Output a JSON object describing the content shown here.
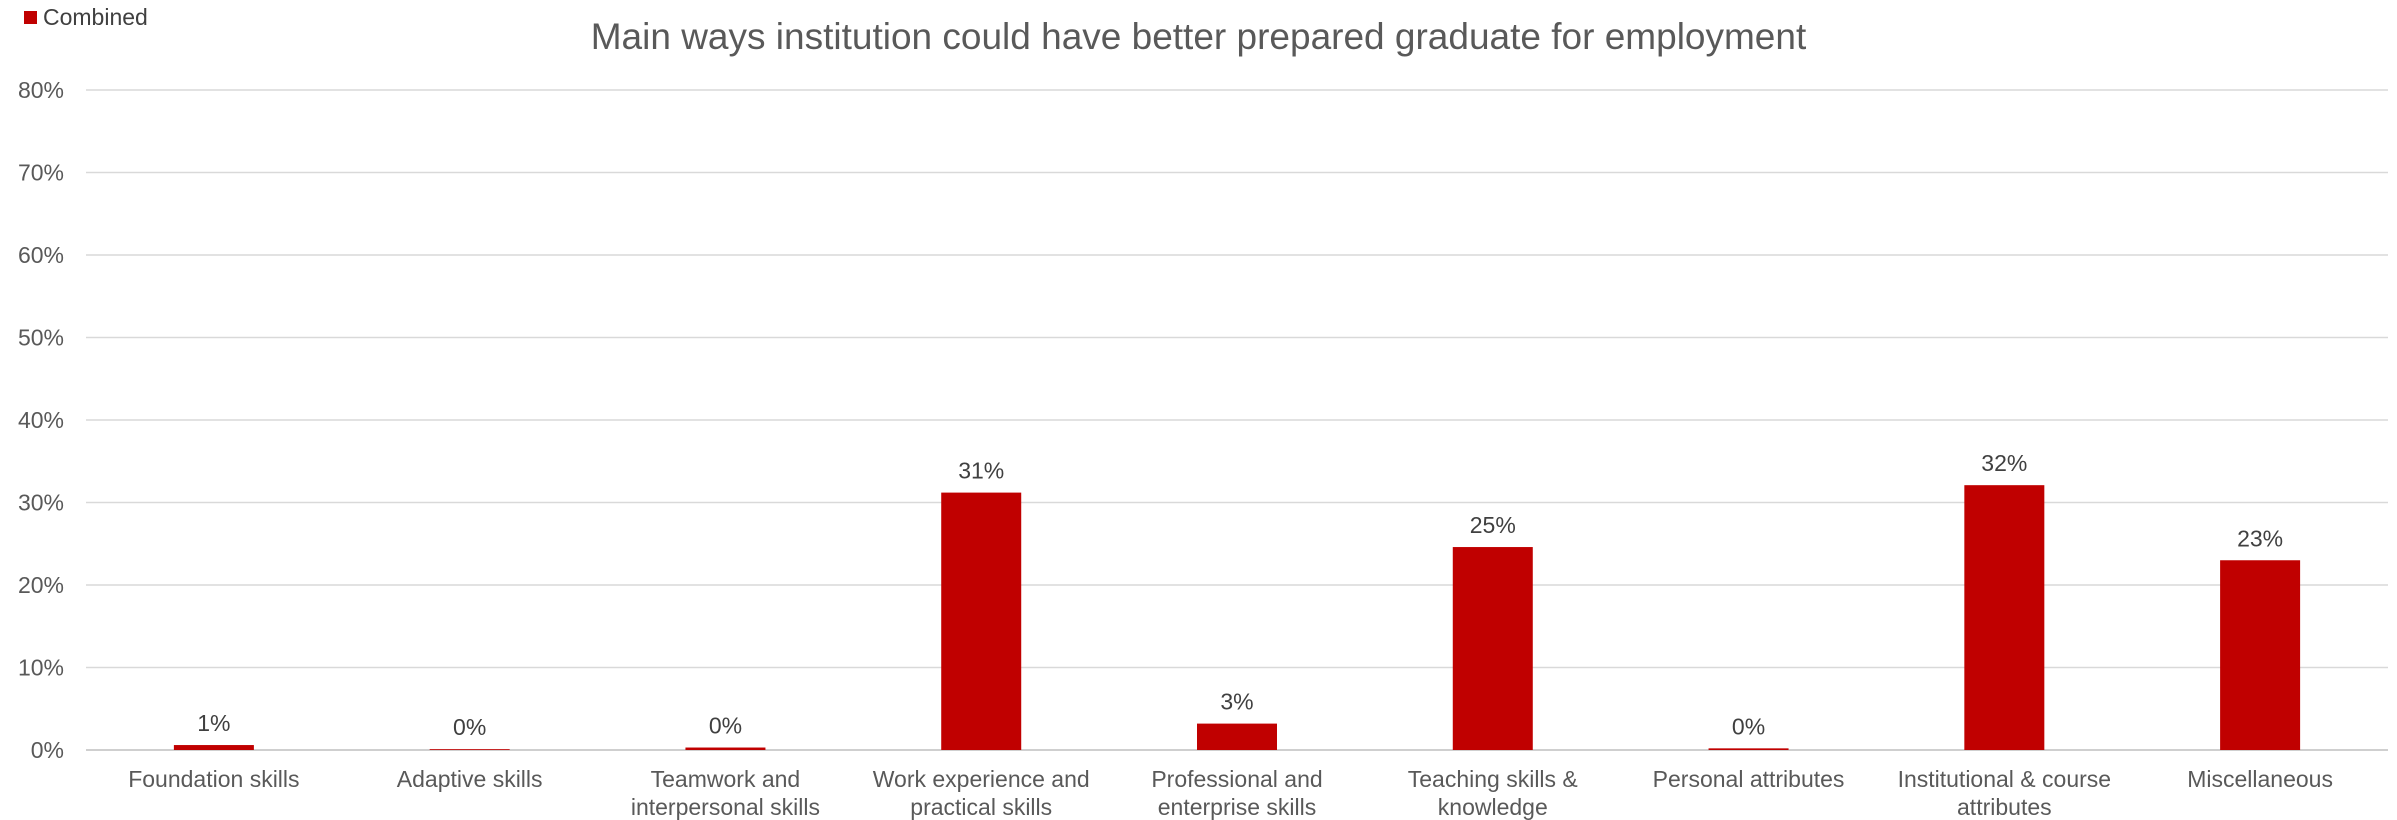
{
  "chart_data": {
    "type": "bar",
    "title": "Main ways institution could have better prepared graduate for employment",
    "legend": {
      "position": "top-left",
      "entries": [
        "Combined"
      ]
    },
    "categories": [
      [
        "Foundation skills"
      ],
      [
        "Adaptive skills"
      ],
      [
        "Teamwork and",
        "interpersonal skills"
      ],
      [
        "Work experience and",
        "practical skills"
      ],
      [
        "Professional and",
        "enterprise skills"
      ],
      [
        "Teaching skills &",
        "knowledge"
      ],
      [
        "Personal attributes"
      ],
      [
        "Institutional & course",
        "attributes"
      ],
      [
        "Miscellaneous"
      ]
    ],
    "series": [
      {
        "name": "Combined",
        "color": "#C00000",
        "values": [
          0.6,
          0.1,
          0.3,
          31.2,
          3.2,
          24.6,
          0.2,
          32.1,
          23.0
        ],
        "labels": [
          "1%",
          "0%",
          "0%",
          "31%",
          "3%",
          "25%",
          "0%",
          "32%",
          "23%"
        ]
      }
    ],
    "ylim": [
      0,
      80
    ],
    "yticks": [
      "0%",
      "10%",
      "20%",
      "30%",
      "40%",
      "50%",
      "60%",
      "70%",
      "80%"
    ],
    "xlabel": "",
    "ylabel": "",
    "grid": true
  }
}
